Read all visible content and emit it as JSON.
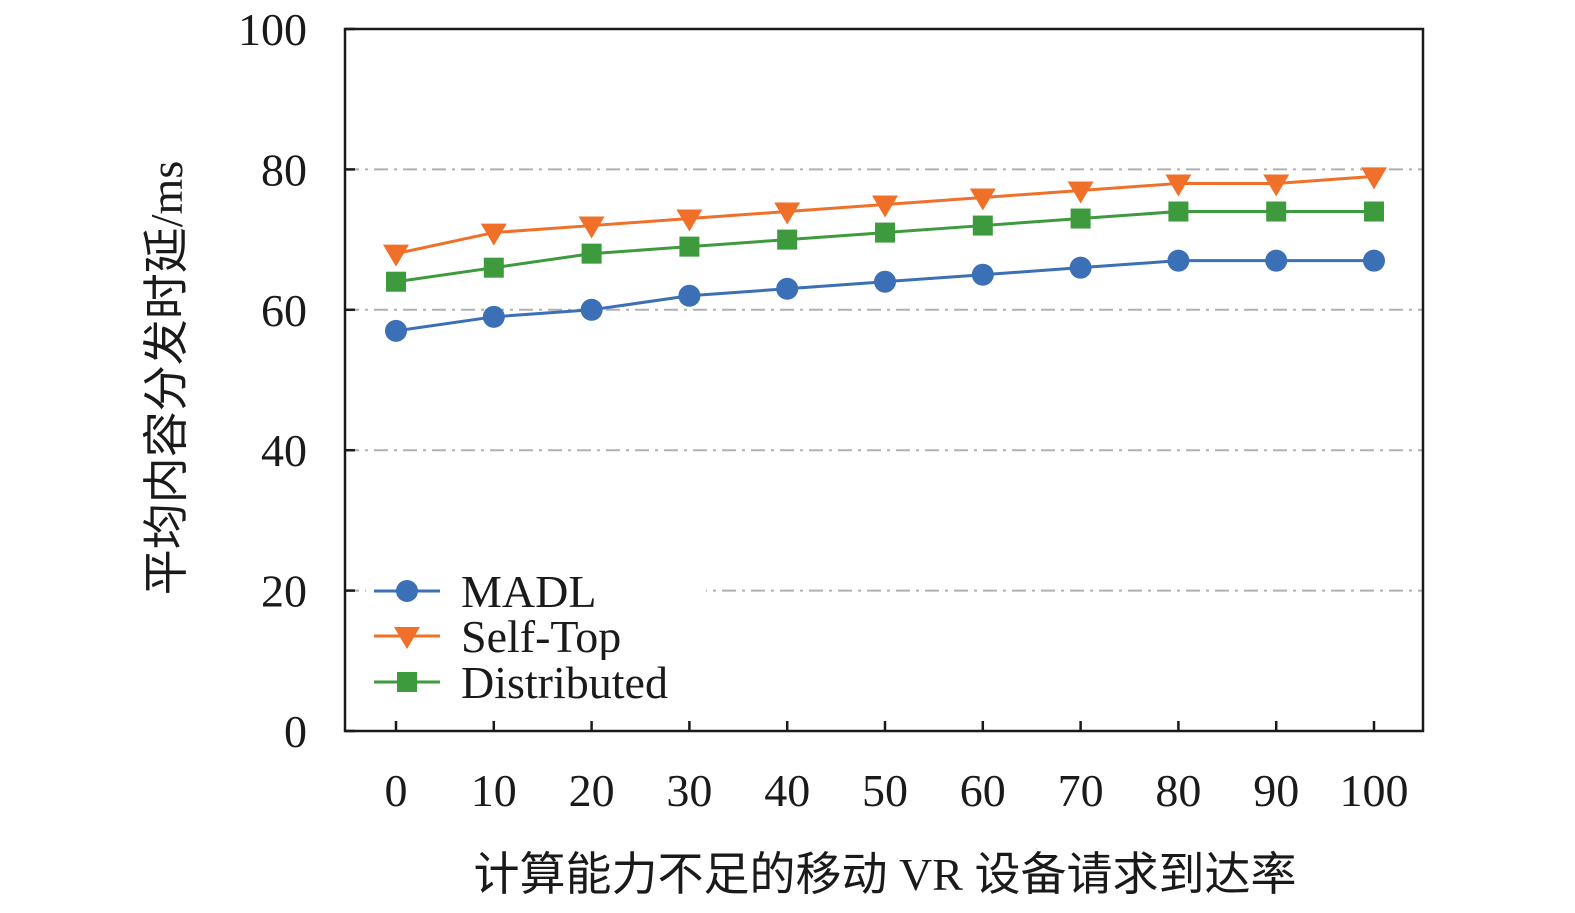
{
  "chart_data": {
    "type": "line",
    "xlabel": "计算能力不足的移动 VR 设备请求到达率",
    "ylabel": "平均内容分发时延/ms",
    "x": [
      0,
      10,
      20,
      30,
      40,
      50,
      60,
      70,
      80,
      90,
      100
    ],
    "xticks": [
      "0",
      "10",
      "20",
      "30",
      "40",
      "50",
      "60",
      "70",
      "80",
      "90",
      "100"
    ],
    "yticks": [
      "0",
      "20",
      "40",
      "60",
      "80",
      "100"
    ],
    "ylim": [
      0,
      100
    ],
    "grid": "horizontal dash-dot",
    "legend_position": "bottom-left",
    "series": [
      {
        "name": "MADL",
        "color": "#3b6fb6",
        "marker": "circle",
        "values": [
          57,
          59,
          60,
          62,
          63,
          64,
          65,
          66,
          67,
          67,
          67
        ]
      },
      {
        "name": "Self-Top",
        "color": "#f0702a",
        "marker": "triangle-down",
        "values": [
          68,
          71,
          72,
          73,
          74,
          75,
          76,
          77,
          78,
          78,
          79
        ]
      },
      {
        "name": "Distributed",
        "color": "#3d9a3d",
        "marker": "square",
        "values": [
          64,
          66,
          68,
          69,
          70,
          71,
          72,
          73,
          74,
          74,
          74
        ]
      }
    ]
  }
}
